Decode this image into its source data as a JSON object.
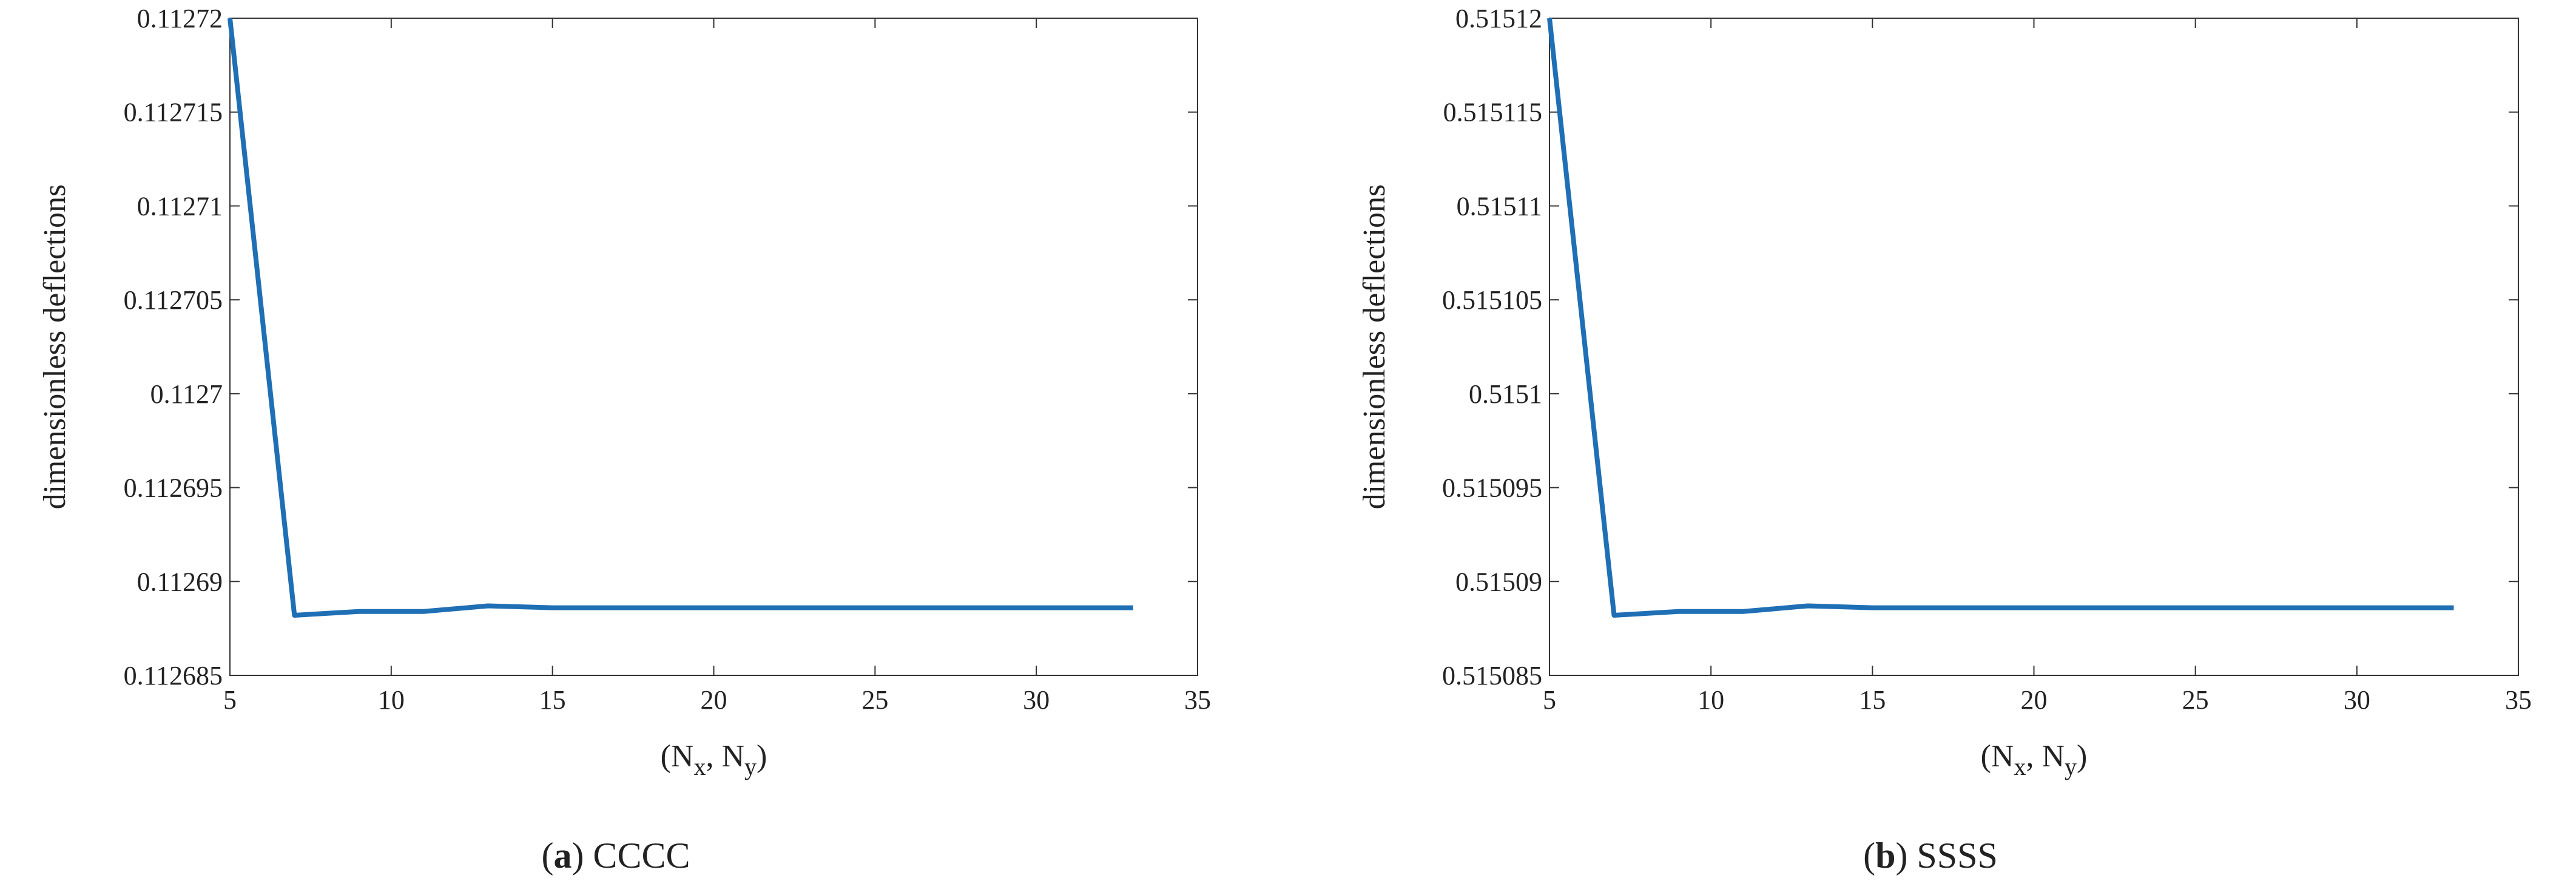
{
  "chart_data": [
    {
      "type": "line",
      "ylabel": "dimensionless deflections",
      "xlabel_parts": [
        {
          "text": "(N"
        },
        {
          "text": "x",
          "sub": true
        },
        {
          "text": ", N"
        },
        {
          "text": "y",
          "sub": true
        },
        {
          "text": ")"
        }
      ],
      "caption": [
        "(",
        "a",
        ") CCCC"
      ],
      "x": [
        5,
        7,
        9,
        11,
        13,
        15,
        17,
        19,
        21,
        23,
        25,
        27,
        29,
        31,
        33
      ],
      "series": [
        {
          "color": "#1f6fb5",
          "values": [
            0.11272,
            0.1126882,
            0.1126884,
            0.1126884,
            0.1126887,
            0.1126886,
            0.1126886,
            0.1126886,
            0.1126886,
            0.1126886,
            0.1126886,
            0.1126886,
            0.1126886,
            0.1126886,
            0.1126886
          ]
        }
      ],
      "xlim": [
        5,
        35
      ],
      "xticks": [
        5,
        10,
        15,
        20,
        25,
        30,
        35
      ],
      "ylim": [
        0.112685,
        0.11272
      ],
      "yticks": [
        0.112685,
        0.11269,
        0.112695,
        0.1127,
        0.112705,
        0.11271,
        0.112715,
        0.11272
      ]
    },
    {
      "type": "line",
      "ylabel": "dimensionless deflections",
      "xlabel_parts": [
        {
          "text": "(N"
        },
        {
          "text": "x",
          "sub": true
        },
        {
          "text": ", N"
        },
        {
          "text": "y",
          "sub": true
        },
        {
          "text": ")"
        }
      ],
      "caption": [
        "(",
        "b",
        ") SSSS"
      ],
      "x": [
        5,
        7,
        9,
        11,
        13,
        15,
        17,
        19,
        21,
        23,
        25,
        27,
        29,
        31,
        33
      ],
      "series": [
        {
          "color": "#1f6fb5",
          "values": [
            0.51512,
            0.5150882,
            0.5150884,
            0.5150884,
            0.5150887,
            0.5150886,
            0.5150886,
            0.5150886,
            0.5150886,
            0.5150886,
            0.5150886,
            0.5150886,
            0.5150886,
            0.5150886,
            0.5150886
          ]
        }
      ],
      "xlim": [
        5,
        35
      ],
      "xticks": [
        5,
        10,
        15,
        20,
        25,
        30,
        35
      ],
      "ylim": [
        0.515085,
        0.51512
      ],
      "yticks": [
        0.515085,
        0.51509,
        0.515095,
        0.5151,
        0.515105,
        0.51511,
        0.515115,
        0.51512
      ]
    }
  ]
}
